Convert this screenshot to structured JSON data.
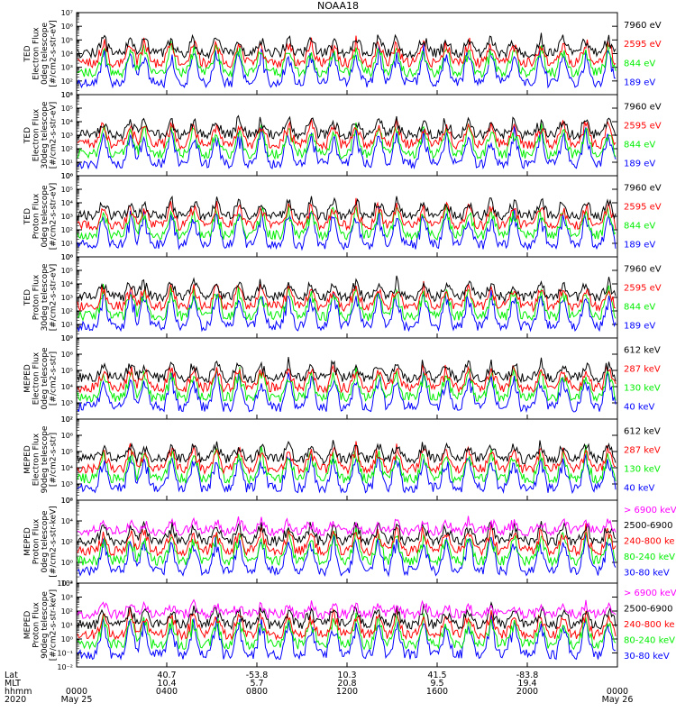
{
  "title": "NOAA18",
  "colors": {
    "blue": "#0000ff",
    "red": "#ff0000",
    "green": "#00ee00",
    "black": "#000000",
    "magenta": "#ff00ff"
  },
  "chart_data": [
    {
      "type": "line",
      "ylabel": [
        "TED",
        "Electron Flux",
        "0deg telescope",
        "[#/cm2-s-str-eV]"
      ],
      "ylog": [
        1,
        7
      ],
      "yticklabels": [
        "10¹",
        "10²",
        "10³",
        "10⁴",
        "10⁵",
        "10⁶",
        "10⁷"
      ],
      "legend": [
        {
          "label": "7960 eV",
          "color": "black"
        },
        {
          "label": "2595 eV",
          "color": "red"
        },
        {
          "label": "844 eV",
          "color": "green"
        },
        {
          "label": "189 eV",
          "color": "blue"
        }
      ]
    },
    {
      "type": "line",
      "ylabel": [
        "TED",
        "Electron Flux",
        "30deg telescope",
        "[#/cm2-s-str-eV]"
      ],
      "ylog": [
        0,
        6
      ],
      "yticklabels": [
        "10⁰",
        "10¹",
        "10²",
        "10³",
        "10⁴",
        "10⁵",
        "10⁶"
      ],
      "legend": [
        {
          "label": "7960 eV",
          "color": "black"
        },
        {
          "label": "2595 eV",
          "color": "red"
        },
        {
          "label": "844 eV",
          "color": "green"
        },
        {
          "label": "189 eV",
          "color": "blue"
        }
      ]
    },
    {
      "type": "line",
      "ylabel": [
        "TED",
        "Proton Flux",
        "0deg telescope",
        "[#/cm2-s-str-eV]"
      ],
      "ylog": [
        0,
        6
      ],
      "yticklabels": [
        "10⁰",
        "10¹",
        "10²",
        "10³",
        "10⁴",
        "10⁵",
        "10⁶"
      ],
      "legend": [
        {
          "label": "7960 eV",
          "color": "black"
        },
        {
          "label": "2595 eV",
          "color": "red"
        },
        {
          "label": "844 eV",
          "color": "green"
        },
        {
          "label": "189 eV",
          "color": "blue"
        }
      ]
    },
    {
      "type": "line",
      "ylabel": [
        "TED",
        "Proton Flux",
        "30deg telescope",
        "[#/cm2-s-str-eV]"
      ],
      "ylog": [
        0,
        6
      ],
      "yticklabels": [
        "10⁰",
        "10¹",
        "10²",
        "10³",
        "10⁴",
        "10⁵",
        "10⁶"
      ],
      "legend": [
        {
          "label": "7960 eV",
          "color": "black"
        },
        {
          "label": "2595 eV",
          "color": "red"
        },
        {
          "label": "844 eV",
          "color": "green"
        },
        {
          "label": "189 eV",
          "color": "blue"
        }
      ]
    },
    {
      "type": "line",
      "ylabel": [
        "MEPED",
        "Electron Flux",
        "0deg telescope",
        "[#/cm2-s-str]"
      ],
      "ylog": [
        2,
        7
      ],
      "yticklabels": [
        "10²",
        "10³",
        "10⁴",
        "10⁵",
        "10⁶",
        "10⁷"
      ],
      "legend": [
        {
          "label": "612 keV",
          "color": "black"
        },
        {
          "label": "287 keV",
          "color": "red"
        },
        {
          "label": "130 keV",
          "color": "green"
        },
        {
          "label": "40 keV",
          "color": "blue"
        }
      ]
    },
    {
      "type": "line",
      "ylabel": [
        "MEPED",
        "Electron Flux",
        "90deg telescope",
        "[#/cm2-s-str]"
      ],
      "ylog": [
        2,
        7
      ],
      "yticklabels": [
        "10²",
        "10³",
        "10⁴",
        "10⁵",
        "10⁶",
        "10⁷"
      ],
      "legend": [
        {
          "label": "612 keV",
          "color": "black"
        },
        {
          "label": "287 keV",
          "color": "red"
        },
        {
          "label": "130 keV",
          "color": "green"
        },
        {
          "label": "40 keV",
          "color": "blue"
        }
      ]
    },
    {
      "type": "line",
      "ylabel": [
        "MEPED",
        "Proton Flux",
        "0deg telescope",
        "[#/cm2-s-str-keV]"
      ],
      "ylog": [
        -2,
        6
      ],
      "yticklabels": [
        "10⁻²",
        "10⁰",
        "10²",
        "10⁴",
        "10⁶"
      ],
      "legend": [
        {
          "label": "> 6900 keV",
          "color": "magenta"
        },
        {
          "label": "2500-6900",
          "color": "black"
        },
        {
          "label": "240-800 ke",
          "color": "red"
        },
        {
          "label": "80-240 keV",
          "color": "green"
        },
        {
          "label": "30-80 keV",
          "color": "blue"
        }
      ]
    },
    {
      "type": "line",
      "ylabel": [
        "MEPED",
        "Proton Flux",
        "90deg telescope",
        "[#/cm2-s-str-keV]"
      ],
      "ylog": [
        -2,
        4
      ],
      "yticklabels": [
        "10⁻²",
        "10⁻¹",
        "10⁰",
        "10¹",
        "10²",
        "10³",
        "10⁴"
      ],
      "legend": [
        {
          "label": "> 6900 keV",
          "color": "magenta"
        },
        {
          "label": "2500-6900",
          "color": "black"
        },
        {
          "label": "240-800 ke",
          "color": "red"
        },
        {
          "label": "80-240 keV",
          "color": "green"
        },
        {
          "label": "30-80 keV",
          "color": "blue"
        }
      ]
    }
  ],
  "xaxis": {
    "row_labels": [
      "Lat",
      "MLT",
      "hhmm",
      "2020"
    ],
    "ticks": [
      {
        "lat": "",
        "mlt": "",
        "hhmm": "0000",
        "date": "May 25"
      },
      {
        "lat": "40.7",
        "mlt": "10.4",
        "hhmm": "0400",
        "date": ""
      },
      {
        "lat": "-53.8",
        "mlt": "5.7",
        "hhmm": "0800",
        "date": ""
      },
      {
        "lat": "10.3",
        "mlt": "20.8",
        "hhmm": "1200",
        "date": ""
      },
      {
        "lat": "41.5",
        "mlt": "9.5",
        "hhmm": "1600",
        "date": ""
      },
      {
        "lat": "-83.8",
        "mlt": "19.4",
        "hhmm": "2000",
        "date": ""
      },
      {
        "lat": "",
        "mlt": "",
        "hhmm": "0000",
        "date": "May 26"
      }
    ]
  }
}
